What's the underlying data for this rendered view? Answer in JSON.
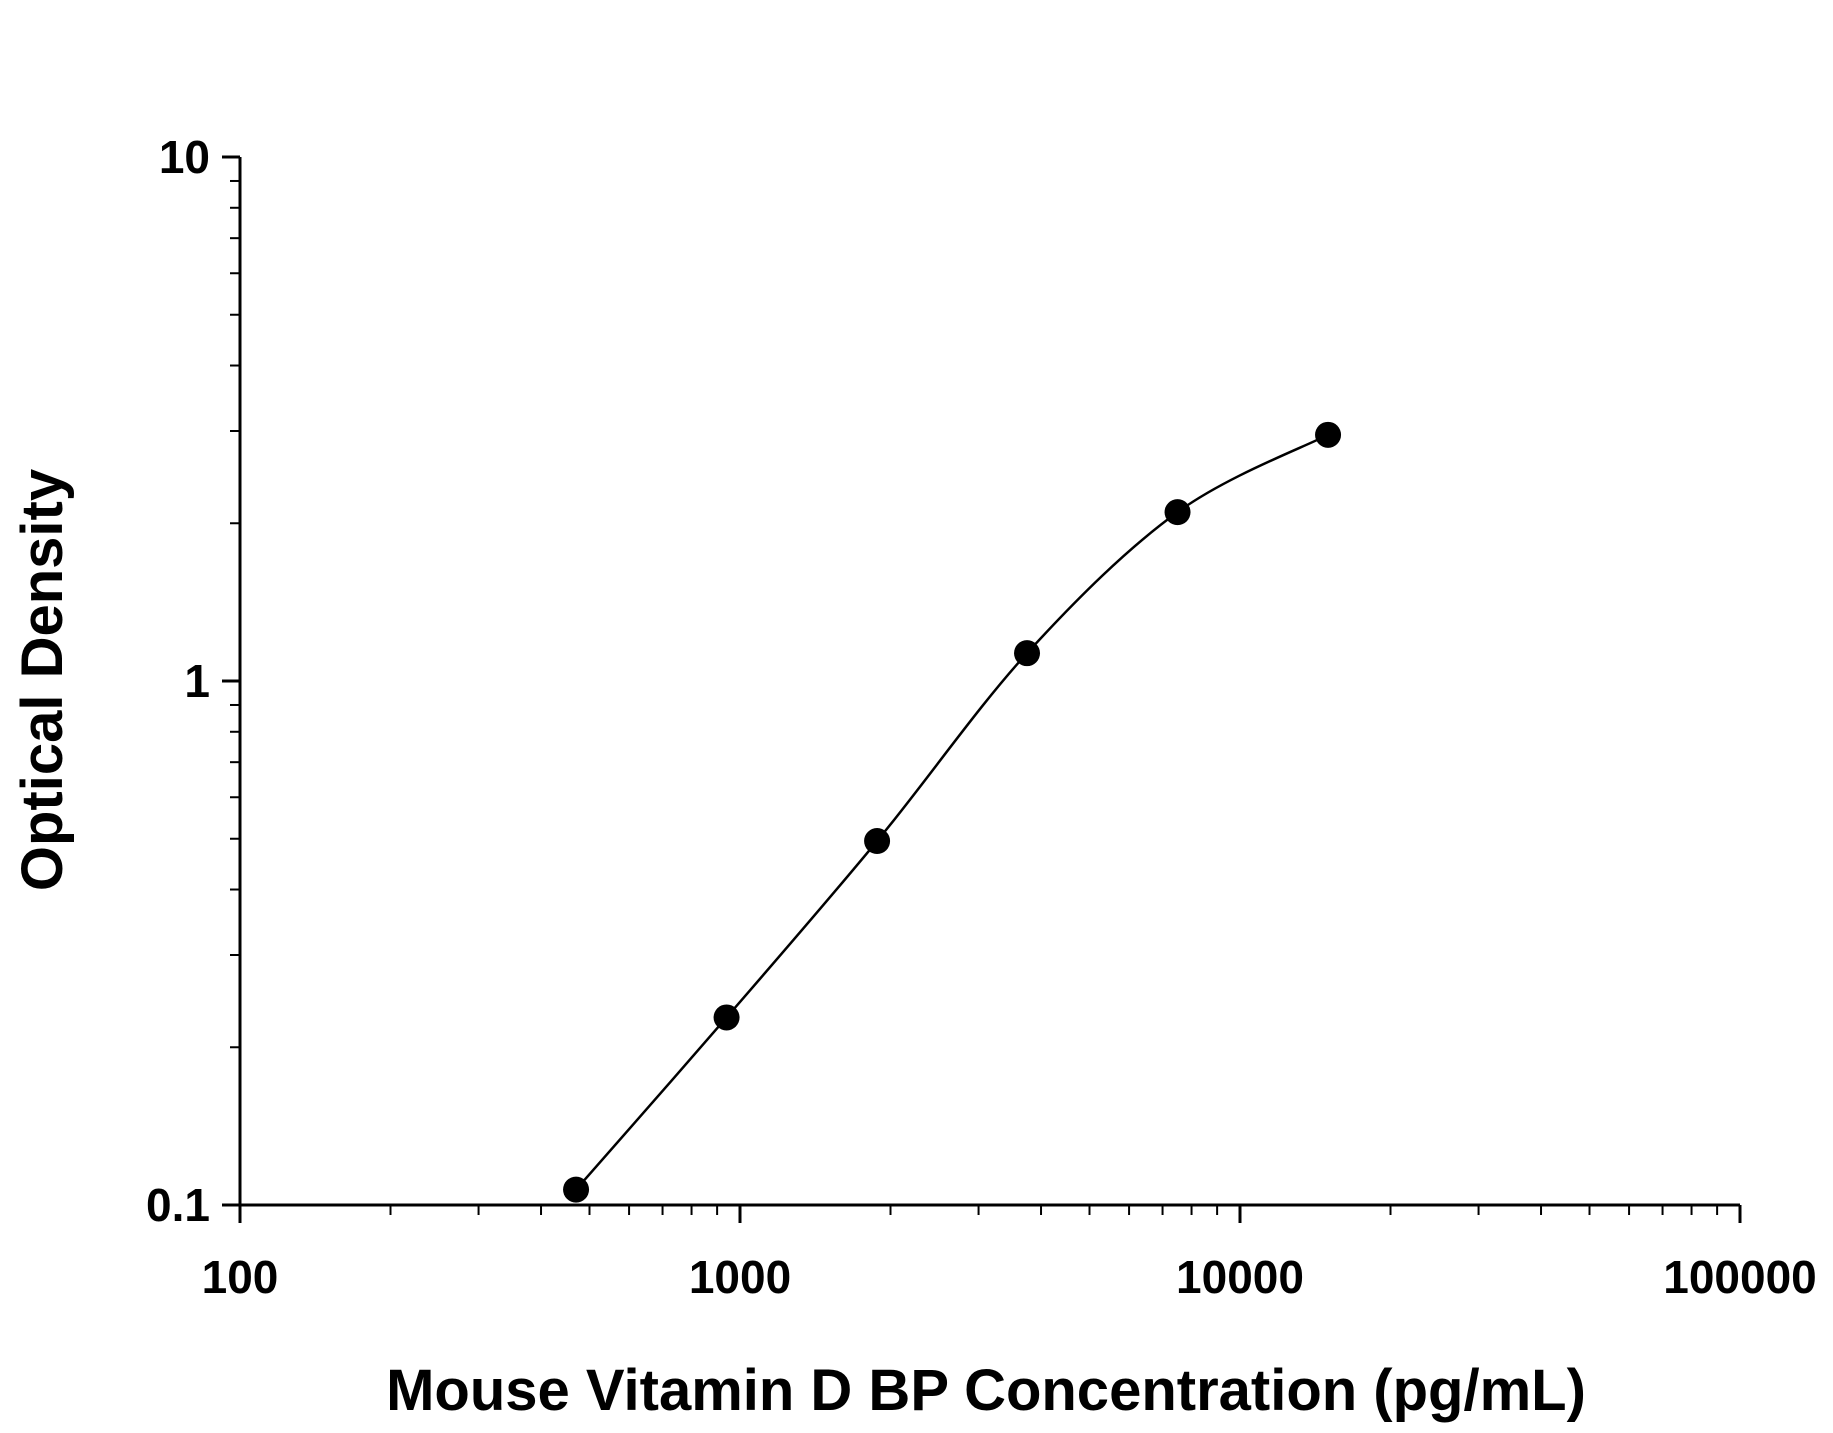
{
  "chart_data": {
    "type": "scatter",
    "title": "",
    "xlabel": "Mouse Vitamin D BP Concentration (pg/mL)",
    "ylabel": "Optical Density",
    "x_scale": "log",
    "y_scale": "log",
    "xlim": [
      100,
      100000
    ],
    "ylim": [
      0.1,
      10
    ],
    "x_ticks": [
      "100",
      "1000",
      "10000",
      "100000"
    ],
    "y_ticks": [
      "0.1",
      "1",
      "10"
    ],
    "grid": false,
    "legend": "none",
    "series": [
      {
        "x": [
          470,
          940,
          1880,
          3750,
          7500,
          15000
        ],
        "y": [
          0.107,
          0.228,
          0.495,
          1.13,
          2.1,
          2.95
        ],
        "marker": "filled-circle",
        "fit_line": true
      }
    ],
    "colors": {
      "marker": "#000000",
      "line": "#000000",
      "axis": "#000000"
    }
  }
}
